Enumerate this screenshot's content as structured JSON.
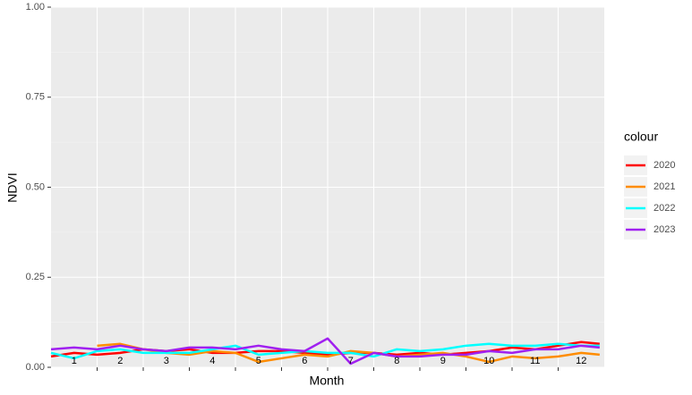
{
  "chart_data": {
    "type": "line",
    "xlabel": "Month",
    "ylabel": "NDVI",
    "legend_title": "colour",
    "legend": "right",
    "x": [
      1,
      1.5,
      2,
      2.5,
      3,
      3.5,
      4,
      4.5,
      5,
      5.5,
      6,
      6.5,
      7,
      7.5,
      8,
      8.5,
      9,
      9.5,
      10,
      10.5,
      11,
      11.5,
      12,
      12.5,
      12.9
    ],
    "series": [
      {
        "name": "2020",
        "color": "#ff0000",
        "values": [
          0.03,
          0.04,
          0.035,
          0.04,
          0.05,
          0.045,
          0.05,
          0.04,
          0.04,
          0.045,
          0.045,
          0.04,
          0.035,
          0.04,
          0.04,
          0.035,
          0.04,
          0.035,
          0.04,
          0.045,
          0.055,
          0.05,
          0.06,
          0.07,
          0.065
        ]
      },
      {
        "name": "2021",
        "color": "#ff8c00",
        "values": [
          null,
          null,
          0.06,
          0.065,
          0.05,
          0.04,
          0.035,
          0.045,
          0.04,
          0.015,
          0.025,
          0.035,
          0.03,
          0.045,
          0.04,
          0.03,
          0.035,
          0.04,
          0.03,
          0.015,
          0.03,
          0.025,
          0.03,
          0.04,
          0.035
        ]
      },
      {
        "name": "2022",
        "color": "#00ffff",
        "values": [
          0.04,
          0.025,
          0.045,
          0.05,
          0.04,
          0.04,
          0.04,
          0.05,
          0.06,
          0.035,
          0.04,
          0.045,
          0.04,
          0.04,
          0.03,
          0.05,
          0.045,
          0.05,
          0.06,
          0.065,
          0.06,
          0.06,
          0.065,
          0.06,
          0.06
        ]
      },
      {
        "name": "2023",
        "color": "#a020f0",
        "values": [
          0.05,
          0.055,
          0.05,
          0.06,
          0.05,
          0.045,
          0.055,
          0.055,
          0.05,
          0.06,
          0.05,
          0.045,
          0.08,
          0.01,
          0.04,
          0.03,
          0.03,
          0.035,
          0.035,
          0.045,
          0.04,
          0.05,
          0.05,
          0.06,
          0.055
        ]
      }
    ],
    "xlim": [
      1,
      13
    ],
    "xticks": [
      {
        "value": 1.5,
        "label": "1"
      },
      {
        "value": 2.5,
        "label": "2"
      },
      {
        "value": 3.5,
        "label": "3"
      },
      {
        "value": 4.5,
        "label": "4"
      },
      {
        "value": 5.5,
        "label": "5"
      },
      {
        "value": 6.5,
        "label": "6"
      },
      {
        "value": 7.5,
        "label": "7"
      },
      {
        "value": 8.5,
        "label": "8"
      },
      {
        "value": 9.5,
        "label": "9"
      },
      {
        "value": 10.5,
        "label": "10"
      },
      {
        "value": 11.5,
        "label": "11"
      },
      {
        "value": 12.5,
        "label": "12"
      }
    ],
    "xgrid": [
      2,
      3,
      4,
      5,
      6,
      7,
      8,
      9,
      10,
      11,
      12
    ],
    "ylim": [
      0,
      1
    ],
    "yticks": [
      {
        "value": 0,
        "label": "0.00"
      },
      {
        "value": 0.25,
        "label": "0.25"
      },
      {
        "value": 0.5,
        "label": "0.50"
      },
      {
        "value": 0.75,
        "label": "0.75"
      },
      {
        "value": 1,
        "label": "1.00"
      }
    ],
    "yminor": [
      0.125,
      0.375,
      0.625,
      0.875
    ],
    "grid": true
  }
}
